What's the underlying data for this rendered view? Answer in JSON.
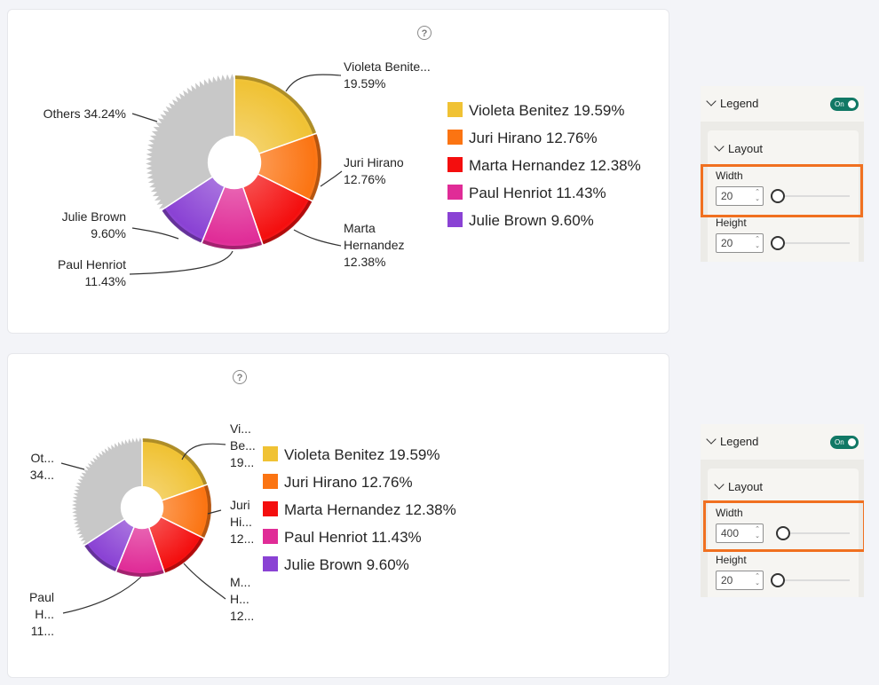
{
  "colors": {
    "violeta": "#f0c234",
    "juri": "#fb7412",
    "marta": "#f40e0e",
    "paul": "#e02c97",
    "julie": "#8a42d4",
    "others": "#c8c8c8",
    "highlight": "#f07020",
    "toggle": "#117865"
  },
  "help_icon": {
    "glyph": "?",
    "icon": "question-circle-icon"
  },
  "chart_data": [
    {
      "type": "pie",
      "categories": [
        "Violeta Benitez",
        "Juri Hirano",
        "Marta Hernandez",
        "Paul Henriot",
        "Julie Brown",
        "Others"
      ],
      "values": [
        19.59,
        12.76,
        12.38,
        11.43,
        9.6,
        34.24
      ],
      "legend": [
        "Violeta Benitez 19.59%",
        "Juri Hirano 12.76%",
        "Marta Hernandez 12.38%",
        "Paul Henriot 11.43%",
        "Julie Brown 9.60%"
      ],
      "legend_position": "right",
      "data_labels": [
        [
          "Violeta Benite...",
          "19.59%"
        ],
        [
          "Juri Hirano",
          "12.76%"
        ],
        [
          "Marta",
          "Hernandez",
          "12.38%"
        ],
        [
          "Paul Henriot",
          "11.43%"
        ],
        [
          "Julie Brown",
          "9.60%"
        ],
        [
          "Others 34.24%"
        ]
      ]
    },
    {
      "type": "pie",
      "categories": [
        "Violeta Benitez",
        "Juri Hirano",
        "Marta Hernandez",
        "Paul Henriot",
        "Julie Brown",
        "Others"
      ],
      "values": [
        19.59,
        12.76,
        12.38,
        11.43,
        9.6,
        34.24
      ],
      "legend": [
        "Violeta Benitez 19.59%",
        "Juri Hirano 12.76%",
        "Marta Hernandez 12.38%",
        "Paul Henriot 11.43%",
        "Julie Brown 9.60%"
      ],
      "legend_position": "right",
      "data_labels": [
        [
          "Vi...",
          "Be...",
          "19..."
        ],
        [
          "Juri",
          "Hi...",
          "12..."
        ],
        [
          "M...",
          "H...",
          "12..."
        ],
        [
          "Paul",
          "H...",
          "11..."
        ],
        [],
        [
          "Ot...",
          "34..."
        ]
      ]
    }
  ],
  "panels": [
    {
      "legend_label": "Legend",
      "toggle_label": "On",
      "layout_label": "Layout",
      "width_label": "Width",
      "width_value": "20",
      "height_label": "Height",
      "height_value": "20"
    },
    {
      "legend_label": "Legend",
      "toggle_label": "On",
      "layout_label": "Layout",
      "width_label": "Width",
      "width_value": "400",
      "height_label": "Height",
      "height_value": "20"
    }
  ]
}
